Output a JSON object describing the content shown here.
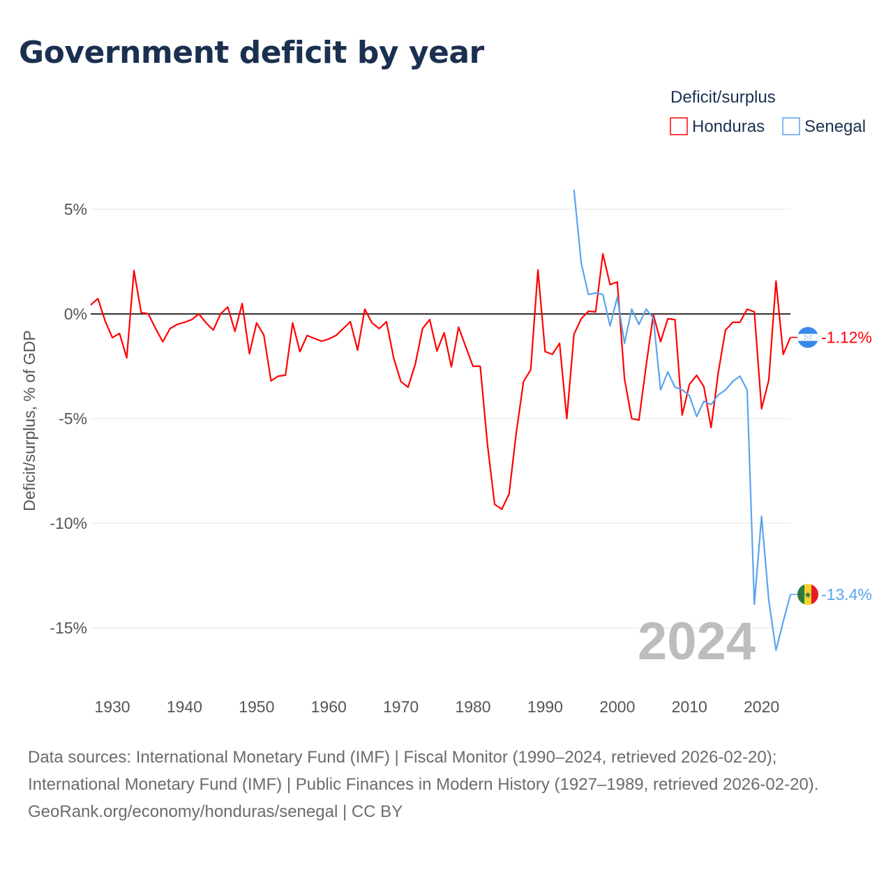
{
  "chart_data": {
    "type": "line",
    "title": "Government deficit by year",
    "ylabel": "Deficit/surplus, % of GDP",
    "xlabel": "",
    "ylim": [
      -17,
      6
    ],
    "xlim": [
      1927,
      2024
    ],
    "y_ticks": [
      5,
      0,
      -5,
      -10,
      -15
    ],
    "y_tick_labels": [
      "5%",
      "0%",
      "-5%",
      "-10%",
      "-15%"
    ],
    "x_ticks": [
      1930,
      1940,
      1950,
      1960,
      1970,
      1980,
      1990,
      2000,
      2010,
      2020
    ],
    "x_tick_labels": [
      "1930",
      "1940",
      "1950",
      "1960",
      "1970",
      "1980",
      "1990",
      "2000",
      "2010",
      "2020"
    ],
    "legend_title": "Deficit/surplus",
    "legend_placement": "top-right",
    "watermark": "2024",
    "series": [
      {
        "name": "Honduras",
        "color": "#ff0000",
        "start_year": 1927,
        "end_label": "-1.12%",
        "values": [
          0.43,
          0.73,
          -0.33,
          -1.13,
          -0.93,
          -2.1,
          2.07,
          0.07,
          0,
          -0.7,
          -1.33,
          -0.7,
          -0.5,
          -0.4,
          -0.27,
          0,
          -0.43,
          -0.77,
          0,
          0.33,
          -0.83,
          0.5,
          -1.9,
          -0.43,
          -1.0,
          -3.2,
          -2.97,
          -2.93,
          -0.43,
          -1.8,
          -1.03,
          -1.17,
          -1.3,
          -1.2,
          -1.03,
          -0.7,
          -0.37,
          -1.73,
          0.23,
          -0.43,
          -0.7,
          -0.37,
          -2.1,
          -3.23,
          -3.5,
          -2.4,
          -0.7,
          -0.27,
          -1.77,
          -0.9,
          -2.53,
          -0.63,
          -1.57,
          -2.5,
          -2.5,
          -6.23,
          -9.1,
          -9.33,
          -8.6,
          -5.67,
          -3.23,
          -2.67,
          2.1,
          -1.8,
          -1.93,
          -1.4,
          -5.0,
          -0.97,
          -0.23,
          0.13,
          0.1,
          2.87,
          1.4,
          1.53,
          -3.1,
          -5.0,
          -5.07,
          -2.47,
          -0.03,
          -1.33,
          -0.23,
          -0.27,
          -4.83,
          -3.37,
          -2.93,
          -3.47,
          -5.43,
          -2.8,
          -0.77,
          -0.4,
          -0.4,
          0.23,
          0.1,
          -4.53,
          -3.17,
          1.57,
          -1.93,
          -1.12
        ]
      },
      {
        "name": "Senegal",
        "color": "#5ba4ec",
        "start_year": 1994,
        "end_label": "-13.4%",
        "values": [
          5.93,
          2.43,
          0.93,
          1.0,
          0.93,
          -0.57,
          0.8,
          -1.4,
          0.23,
          -0.5,
          0.23,
          -0.2,
          -3.63,
          -2.77,
          -3.5,
          -3.63,
          -3.9,
          -4.9,
          -4.17,
          -4.33,
          -3.87,
          -3.63,
          -3.23,
          -2.97,
          -3.63,
          -13.87,
          -9.67,
          -13.67,
          -16.07,
          -14.7,
          -13.4
        ]
      }
    ]
  },
  "footer": {
    "sources": "Data sources: International Monetary Fund (IMF) | Fiscal Monitor (1990–2024, retrieved 2026-02-20); International Monetary Fund (IMF) | Public Finances in Modern History (1927–1989, retrieved 2026-02-20).",
    "credit": "GeoRank.org/economy/honduras/senegal | CC BY"
  }
}
